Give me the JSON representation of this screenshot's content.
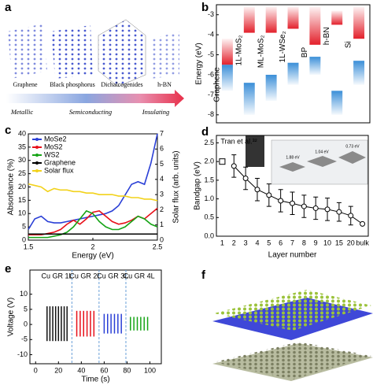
{
  "panel_labels": [
    "a",
    "b",
    "c",
    "d",
    "e",
    "f"
  ],
  "panel_a": {
    "materials": [
      "Graphene",
      "Black phosphorus",
      "Dichalcogenides",
      "h-BN"
    ],
    "classes": [
      "Metallic",
      "Semiconducting",
      "Insulating"
    ]
  },
  "chart_data": [
    {
      "type": "range",
      "ylabel": "Energy (eV)",
      "categories": [
        "Graphene",
        "1L-MoS₂",
        "ML-MoS₂",
        "1L-WSe₂",
        "BP",
        "h-BN",
        "Si"
      ],
      "conduction": [
        [
          -4.2,
          -5.5
        ],
        [
          -2.6,
          -3.9
        ],
        [
          -2.6,
          -3.9
        ],
        [
          -2.6,
          -3.7
        ],
        [
          -2.6,
          -4.5
        ],
        [
          -2.8,
          -3.5
        ],
        [
          -2.6,
          -4.2
        ]
      ],
      "valence": [
        [
          -5.5,
          -6.8
        ],
        [
          -6.4,
          -8.0
        ],
        [
          -6.0,
          -7.3
        ],
        [
          -5.4,
          -6.5
        ],
        [
          -5.1,
          -6.0
        ],
        [
          -6.8,
          -8.0
        ],
        [
          -5.3,
          -6.5
        ]
      ],
      "conduction_color": "#e3202b",
      "valence_color": "#3b8fd8",
      "ylim": [
        -8.4,
        -2.5
      ],
      "yticks": [
        -8,
        -7,
        -6,
        -5,
        -4,
        -3
      ]
    },
    {
      "type": "line",
      "xlabel": "Energy (eV)",
      "ylabel": "Absorbance (%)",
      "y2label": "Solar flux (arb. units)",
      "x": [
        1.5,
        1.55,
        1.6,
        1.65,
        1.7,
        1.75,
        1.8,
        1.85,
        1.9,
        1.95,
        2.0,
        2.05,
        2.1,
        2.15,
        2.2,
        2.25,
        2.3,
        2.35,
        2.4,
        2.45,
        2.5
      ],
      "series": [
        {
          "name": "MoSe2",
          "color": "#2a3fd6",
          "values": [
            4,
            8,
            9,
            7,
            6.5,
            6.5,
            7,
            7.5,
            8,
            8.5,
            9,
            9.5,
            10,
            11,
            13,
            17,
            21,
            22,
            21,
            29,
            40
          ]
        },
        {
          "name": "MoS2",
          "color": "#e8101a",
          "values": [
            2,
            2,
            2,
            2.5,
            3,
            4,
            6,
            7.5,
            6,
            8,
            10.5,
            11,
            9,
            7,
            6,
            6.5,
            7.5,
            9,
            8,
            10,
            12
          ]
        },
        {
          "name": "WS2",
          "color": "#16a416",
          "values": [
            1,
            1,
            1,
            1,
            1.5,
            2,
            3,
            5,
            8,
            11,
            10,
            7,
            5,
            4,
            4,
            5,
            7,
            9,
            8,
            6,
            5
          ]
        },
        {
          "name": "Graphene",
          "color": "#000000",
          "values": [
            2.3,
            2.3,
            2.3,
            2.3,
            2.3,
            2.3,
            2.3,
            2.3,
            2.3,
            2.3,
            2.3,
            2.3,
            2.3,
            2.3,
            2.3,
            2.3,
            2.3,
            2.3,
            2.3,
            2.3,
            2.3
          ]
        },
        {
          "name": "Solar flux",
          "color": "#f2d21b",
          "axis": "y2",
          "values": [
            3.7,
            3.6,
            3.5,
            3.2,
            3.4,
            3.3,
            3.3,
            3.2,
            3.2,
            3.1,
            3.1,
            3.0,
            3.0,
            3.0,
            2.9,
            2.9,
            2.8,
            2.8,
            2.7,
            2.7,
            2.6
          ]
        }
      ],
      "xlim": [
        1.5,
        2.5
      ],
      "xticks": [
        1.5,
        2,
        2.5
      ],
      "ylim": [
        0,
        40
      ],
      "yticks": [
        0,
        5,
        10,
        15,
        20,
        25,
        30,
        35,
        40
      ],
      "y2lim": [
        0,
        7
      ],
      "y2ticks": [
        0,
        1,
        2,
        3,
        4,
        5,
        6,
        7
      ],
      "legend": "upper left"
    },
    {
      "type": "errorbar",
      "xlabel": "Layer number",
      "ylabel": "Bandgap (eV)",
      "annotation": "Tran et al.³²",
      "inset_labels": [
        "1.88 eV",
        "1.04 eV",
        "0.73 eV"
      ],
      "categories": [
        "1",
        "2",
        "3",
        "4",
        "5",
        "6",
        "7",
        "8",
        "9",
        "10",
        "15",
        "20",
        "bulk"
      ],
      "series": [
        {
          "color": "#000000",
          "marker": "circle",
          "values": [
            null,
            1.88,
            1.55,
            1.25,
            1.1,
            0.95,
            0.88,
            0.8,
            0.75,
            0.72,
            0.65,
            0.55,
            0.33
          ],
          "errors": [
            null,
            0.3,
            0.3,
            0.3,
            0.3,
            0.3,
            0.3,
            0.3,
            0.3,
            0.3,
            0.25,
            0.25,
            0
          ]
        },
        {
          "color": "#000000",
          "marker": "square",
          "values": [
            2.0,
            null,
            null,
            null,
            null,
            null,
            null,
            null,
            null,
            null,
            null,
            null,
            null
          ]
        }
      ],
      "ylim": [
        0,
        2.7
      ],
      "yticks": [
        {
          "value": 0,
          "label": "0.0"
        },
        {
          "value": 0.5,
          "label": "0.5"
        },
        {
          "value": 1,
          "label": "1.0"
        },
        {
          "value": 1.5,
          "label": "1.5"
        },
        {
          "value": 2,
          "label": "2.0"
        },
        {
          "value": 2.5,
          "label": "2.5"
        }
      ]
    },
    {
      "type": "spike",
      "xlabel": "Time (s)",
      "ylabel": "Voltage (V)",
      "series": [
        {
          "name": "Cu GR 1L",
          "color": "#111111",
          "x": [
            10,
            12.5,
            15,
            17.5,
            20,
            22.5,
            25,
            27.5
          ],
          "high": [
            6,
            6,
            6,
            6,
            6,
            6,
            6,
            6
          ],
          "low": [
            -5.5,
            -5.5,
            -5.5,
            -5.5,
            -5.5,
            -5.5,
            -5.5,
            -5.5
          ]
        },
        {
          "name": "Cu GR 2L",
          "color": "#e8101a",
          "x": [
            36,
            39,
            42,
            45,
            48,
            51
          ],
          "high": [
            4.5,
            4.5,
            4.5,
            4.5,
            4.5,
            4.5
          ],
          "low": [
            -4,
            -4,
            -4,
            -4,
            -4,
            -4
          ]
        },
        {
          "name": "Cu GR 3L",
          "color": "#2a3fd6",
          "x": [
            60,
            63,
            66,
            69,
            72,
            75
          ],
          "high": [
            3.5,
            3.5,
            3.5,
            3.5,
            3.5,
            3.5
          ],
          "low": [
            -3,
            -3,
            -3,
            -3,
            -3,
            -3
          ]
        },
        {
          "name": "Cu GR 4L",
          "color": "#16a416",
          "x": [
            83,
            86,
            89,
            92,
            95,
            98
          ],
          "high": [
            2.5,
            2.5,
            2.5,
            2.5,
            2.5,
            2.5
          ],
          "low": [
            -2,
            -2,
            -2,
            -2,
            -2,
            -2
          ]
        }
      ],
      "xlim": [
        -5,
        110
      ],
      "xticks": [
        0,
        20,
        40,
        60,
        80,
        100
      ],
      "ylim": [
        -13,
        18
      ],
      "yticks": [
        -10,
        -5,
        0,
        5,
        10
      ]
    }
  ]
}
